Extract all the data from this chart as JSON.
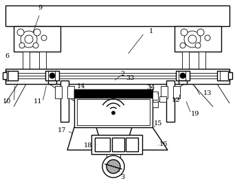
{
  "bg_color": "#ffffff",
  "line_color": "#000000",
  "fig_width": 3.42,
  "fig_height": 2.63,
  "dpi": 100
}
